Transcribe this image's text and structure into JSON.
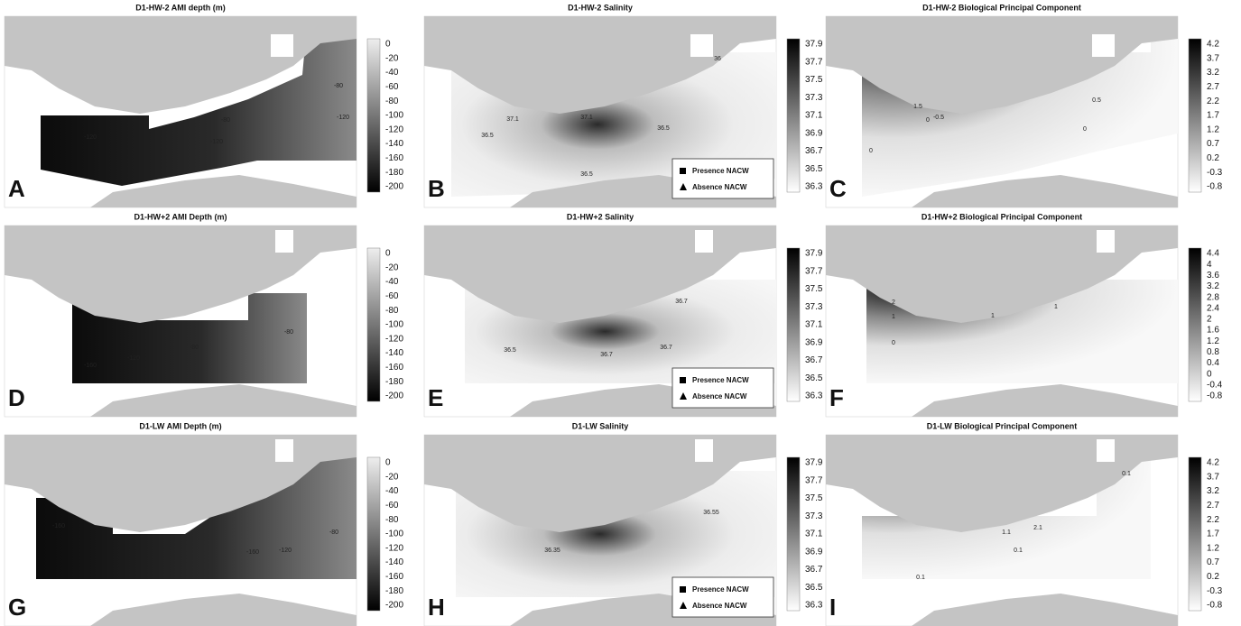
{
  "panels": [
    {
      "letter": "A",
      "title": "D1-HW-2  AMI depth (m)",
      "colorbar_ticks": [
        0,
        -20,
        -40,
        -60,
        -80,
        -100,
        -120,
        -140,
        -160,
        -180,
        -200
      ],
      "contour_labels": [
        -120,
        -80,
        -120,
        -120,
        -80
      ]
    },
    {
      "letter": "B",
      "title": "D1-HW-2 Salinity",
      "colorbar_ticks": [
        37.9,
        37.7,
        37.5,
        37.3,
        37.1,
        36.9,
        36.7,
        36.5,
        36.3
      ],
      "contour_labels": [
        36.5,
        37.1,
        37.1,
        36.5,
        36.5,
        36
      ],
      "legend": [
        "Presence NACW",
        "Absence NACW"
      ]
    },
    {
      "letter": "C",
      "title": "D1-HW-2 Biological Principal Component",
      "colorbar_ticks": [
        4.2,
        3.7,
        3.2,
        2.7,
        2.2,
        1.7,
        1.2,
        0.7,
        0.2,
        -0.3,
        -0.8
      ],
      "contour_labels": [
        1.5,
        -0.5,
        0,
        0.5,
        0,
        0
      ]
    },
    {
      "letter": "D",
      "title": "D1-HW+2 AMI Depth (m)",
      "colorbar_ticks": [
        0,
        -20,
        -40,
        -60,
        -80,
        -100,
        -120,
        -140,
        -160,
        -180,
        -200
      ],
      "contour_labels": [
        -160,
        -120,
        -80,
        -80
      ]
    },
    {
      "letter": "E",
      "title": "D1-HW+2 Salinity",
      "colorbar_ticks": [
        37.9,
        37.7,
        37.5,
        37.3,
        37.1,
        36.9,
        36.7,
        36.5,
        36.3
      ],
      "contour_labels": [
        36.5,
        36.7,
        36.7,
        36.7
      ],
      "legend": [
        "Presence NACW",
        "Absence NACW"
      ]
    },
    {
      "letter": "F",
      "title": "D1-HW+2 Biological Principal Component",
      "colorbar_ticks": [
        4.4,
        4,
        3.6,
        3.2,
        2.8,
        2.4,
        2,
        1.6,
        1.2,
        0.8,
        0.4,
        0,
        -0.4,
        -0.8
      ],
      "contour_labels": [
        2,
        1,
        0,
        1,
        1
      ]
    },
    {
      "letter": "G",
      "title": "D1-LW AMI Depth (m)",
      "colorbar_ticks": [
        0,
        -20,
        -40,
        -60,
        -80,
        -100,
        -120,
        -140,
        -160,
        -180,
        -200
      ],
      "contour_labels": [
        -160,
        -160,
        -120,
        -80
      ]
    },
    {
      "letter": "H",
      "title": "D1-LW Salinity",
      "colorbar_ticks": [
        37.9,
        37.7,
        37.5,
        37.3,
        37.1,
        36.9,
        36.7,
        36.5,
        36.3
      ],
      "contour_labels": [
        36.35,
        36.55
      ],
      "legend": [
        "Presence NACW",
        "Absence NACW"
      ]
    },
    {
      "letter": "I",
      "title": "D1-LW Biological Principal Component",
      "colorbar_ticks": [
        4.2,
        3.7,
        3.2,
        2.7,
        2.2,
        1.7,
        1.2,
        0.7,
        0.2,
        -0.3,
        -0.8
      ],
      "contour_labels": [
        0.1,
        2.1,
        1.1,
        0.1,
        0.1
      ]
    }
  ]
}
